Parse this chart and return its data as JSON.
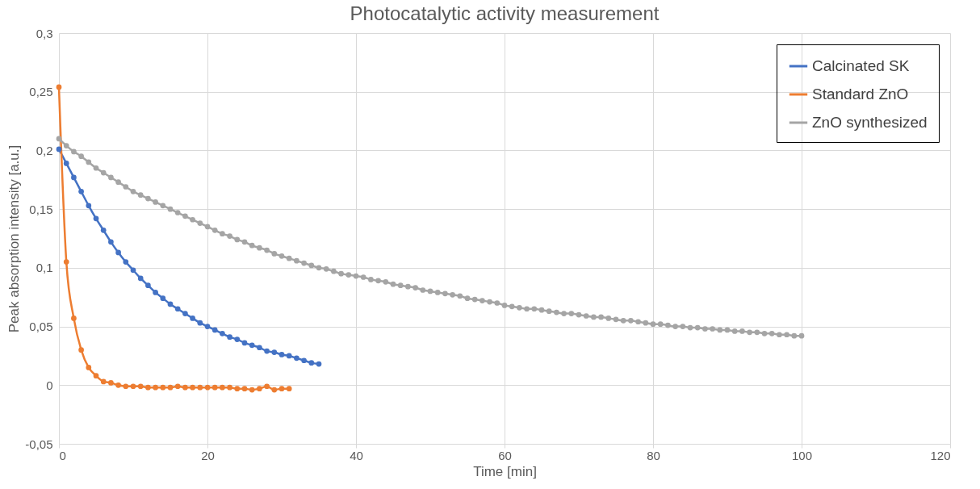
{
  "chart_data": {
    "type": "line",
    "title": "Photocatalytic activity measurement",
    "xlabel": "Time [min]",
    "ylabel": "Peak absorption intensity [a.u.]",
    "xlim": [
      0,
      120
    ],
    "xticks": [
      0,
      20,
      40,
      60,
      80,
      100,
      120
    ],
    "ylim": [
      -0.05,
      0.3
    ],
    "yticks": [
      {
        "value": -0.05,
        "label": "-0,05"
      },
      0,
      {
        "value": 0.05,
        "label": "0,05"
      },
      {
        "value": 0.1,
        "label": "0,1"
      },
      {
        "value": 0.15,
        "label": "0,15"
      },
      {
        "value": 0.2,
        "label": "0,2"
      },
      {
        "value": 0.25,
        "label": "0,25"
      },
      {
        "value": 0.3,
        "label": "0,3"
      }
    ],
    "grid": true,
    "legend": "top right",
    "marker": "circle",
    "line_style": "solid",
    "series": [
      {
        "name": "Calcinated SK",
        "color": "#4472c4",
        "x": [
          0,
          1,
          2,
          3,
          4,
          5,
          6,
          7,
          8,
          9,
          10,
          11,
          12,
          13,
          14,
          15,
          16,
          17,
          18,
          19,
          20,
          21,
          22,
          23,
          24,
          25,
          26,
          27,
          28,
          29,
          30,
          31,
          32,
          33,
          34,
          35
        ],
        "values": [
          0.201,
          0.189,
          0.177,
          0.165,
          0.153,
          0.142,
          0.132,
          0.122,
          0.113,
          0.105,
          0.098,
          0.091,
          0.085,
          0.079,
          0.074,
          0.069,
          0.065,
          0.061,
          0.057,
          0.053,
          0.05,
          0.047,
          0.044,
          0.041,
          0.039,
          0.036,
          0.034,
          0.032,
          0.029,
          0.028,
          0.026,
          0.025,
          0.023,
          0.021,
          0.019,
          0.018
        ]
      },
      {
        "name": "Standard ZnO",
        "color": "#ed7d31",
        "x": [
          0,
          1,
          2,
          3,
          4,
          5,
          6,
          7,
          8,
          9,
          10,
          11,
          12,
          13,
          14,
          15,
          16,
          17,
          18,
          19,
          20,
          21,
          22,
          23,
          24,
          25,
          26,
          27,
          28,
          29,
          30,
          31
        ],
        "values": [
          0.254,
          0.105,
          0.057,
          0.03,
          0.015,
          0.008,
          0.003,
          0.002,
          0,
          -0.001,
          -0.001,
          -0.001,
          -0.002,
          -0.002,
          -0.002,
          -0.002,
          -0.001,
          -0.002,
          -0.002,
          -0.002,
          -0.002,
          -0.002,
          -0.002,
          -0.002,
          -0.003,
          -0.003,
          -0.004,
          -0.003,
          -0.001,
          -0.004,
          -0.003,
          -0.003
        ]
      },
      {
        "name": "ZnO synthesized",
        "color": "#a5a5a5",
        "x": [
          0,
          1,
          2,
          3,
          4,
          5,
          6,
          7,
          8,
          9,
          10,
          11,
          12,
          13,
          14,
          15,
          16,
          17,
          18,
          19,
          20,
          21,
          22,
          23,
          24,
          25,
          26,
          27,
          28,
          29,
          30,
          31,
          32,
          33,
          34,
          35,
          36,
          37,
          38,
          39,
          40,
          41,
          42,
          43,
          44,
          45,
          46,
          47,
          48,
          49,
          50,
          51,
          52,
          53,
          54,
          55,
          56,
          57,
          58,
          59,
          60,
          61,
          62,
          63,
          64,
          65,
          66,
          67,
          68,
          69,
          70,
          71,
          72,
          73,
          74,
          75,
          76,
          77,
          78,
          79,
          80,
          81,
          82,
          83,
          84,
          85,
          86,
          87,
          88,
          89,
          90,
          91,
          92,
          93,
          94,
          95,
          96,
          97,
          98,
          99,
          100
        ],
        "values": [
          0.21,
          0.204,
          0.199,
          0.195,
          0.19,
          0.185,
          0.181,
          0.177,
          0.173,
          0.169,
          0.165,
          0.162,
          0.159,
          0.156,
          0.153,
          0.15,
          0.147,
          0.144,
          0.141,
          0.138,
          0.135,
          0.132,
          0.129,
          0.127,
          0.124,
          0.122,
          0.119,
          0.117,
          0.115,
          0.112,
          0.11,
          0.108,
          0.106,
          0.104,
          0.102,
          0.1,
          0.099,
          0.097,
          0.095,
          0.094,
          0.093,
          0.092,
          0.09,
          0.089,
          0.088,
          0.086,
          0.085,
          0.084,
          0.083,
          0.081,
          0.08,
          0.079,
          0.078,
          0.077,
          0.076,
          0.074,
          0.073,
          0.072,
          0.071,
          0.07,
          0.068,
          0.067,
          0.066,
          0.065,
          0.065,
          0.064,
          0.063,
          0.062,
          0.061,
          0.061,
          0.06,
          0.059,
          0.058,
          0.058,
          0.057,
          0.056,
          0.055,
          0.055,
          0.054,
          0.053,
          0.052,
          0.052,
          0.051,
          0.05,
          0.05,
          0.049,
          0.049,
          0.048,
          0.048,
          0.047,
          0.047,
          0.046,
          0.046,
          0.045,
          0.045,
          0.044,
          0.044,
          0.043,
          0.043,
          0.042,
          0.042
        ]
      }
    ]
  }
}
